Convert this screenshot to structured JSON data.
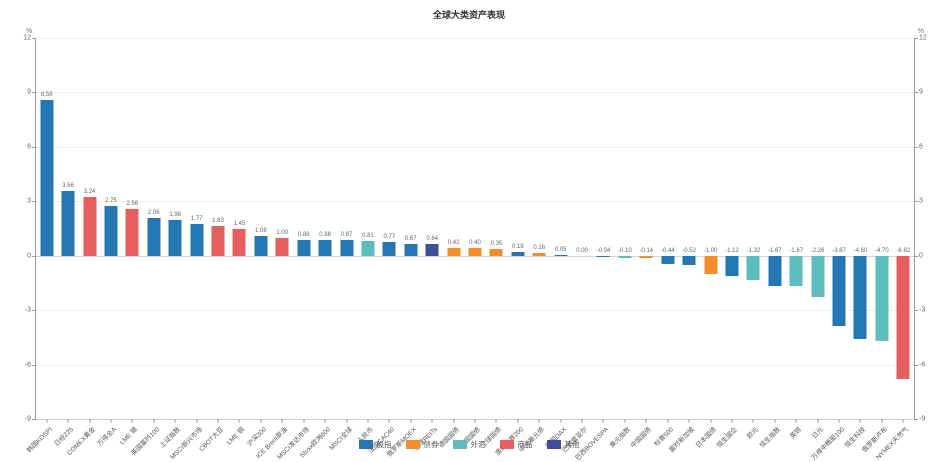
{
  "title": "全球大类资产表现",
  "axis": {
    "unit_left": "%",
    "unit_right": "%"
  },
  "legend": [
    {
      "label": "股指",
      "color": "#2477b2"
    },
    {
      "label": "债券",
      "color": "#f28e2b"
    },
    {
      "label": "外汇",
      "color": "#5dbcbd"
    },
    {
      "label": "商品",
      "color": "#e45f5e"
    },
    {
      "label": "其他",
      "color": "#3e4f95"
    }
  ],
  "chart_data": {
    "type": "bar",
    "title": "全球大类资产表现",
    "xlabel": "",
    "ylabel": "%",
    "ylim": [
      -9,
      12
    ],
    "yticks": [
      12,
      9,
      6,
      3,
      0,
      -3,
      -6,
      -9
    ],
    "grid": true,
    "legend_position": "bottom",
    "value_labels": true,
    "bars": [
      {
        "label": "韩国KOSPI",
        "value": 8.58,
        "group": "股指"
      },
      {
        "label": "日经225",
        "value": 3.56,
        "group": "股指"
      },
      {
        "label": "COMEX黄金",
        "value": 3.24,
        "group": "商品"
      },
      {
        "label": "万得全A",
        "value": 2.75,
        "group": "股指"
      },
      {
        "label": "LME 锡",
        "value": 2.56,
        "group": "商品"
      },
      {
        "label": "英国富时100",
        "value": 2.06,
        "group": "股指"
      },
      {
        "label": "上证指数",
        "value": 1.98,
        "group": "股指"
      },
      {
        "label": "MSCI新兴市场",
        "value": 1.77,
        "group": "股指"
      },
      {
        "label": "CBOT大豆",
        "value": 1.63,
        "group": "商品"
      },
      {
        "label": "LME 铜",
        "value": 1.45,
        "group": "商品"
      },
      {
        "label": "沪深300",
        "value": 1.08,
        "group": "股指"
      },
      {
        "label": "ICE Brent原油",
        "value": 1.0,
        "group": "商品"
      },
      {
        "label": "MSCI发达市场",
        "value": 0.88,
        "group": "股指"
      },
      {
        "label": "Stoxx欧洲600",
        "value": 0.88,
        "group": "股指"
      },
      {
        "label": "MSCI全球",
        "value": 0.87,
        "group": "股指"
      },
      {
        "label": "人民币",
        "value": 0.81,
        "group": "外汇"
      },
      {
        "label": "法国CAC40",
        "value": 0.77,
        "group": "股指"
      },
      {
        "label": "俄罗斯MOEX",
        "value": 0.67,
        "group": "股指"
      },
      {
        "label": "全球REITs",
        "value": 0.64,
        "group": "其他"
      },
      {
        "label": "德国国债",
        "value": 0.42,
        "group": "债券"
      },
      {
        "label": "美国国债",
        "value": 0.4,
        "group": "债券"
      },
      {
        "label": "全球国债",
        "value": 0.35,
        "group": "债券"
      },
      {
        "label": "澳洲标普200",
        "value": 0.18,
        "group": "股指"
      },
      {
        "label": "中资美元债",
        "value": 0.16,
        "group": "债券"
      },
      {
        "label": "德国DAX",
        "value": 0.05,
        "group": "股指"
      },
      {
        "label": "巴西雷亚尔",
        "value": 0.0,
        "group": "外汇"
      },
      {
        "label": "巴西BOVESPA",
        "value": -0.04,
        "group": "股指"
      },
      {
        "label": "美元指数",
        "value": -0.1,
        "group": "外汇"
      },
      {
        "label": "中国国债",
        "value": -0.14,
        "group": "债券"
      },
      {
        "label": "标普500",
        "value": -0.44,
        "group": "股指"
      },
      {
        "label": "富时新加坡",
        "value": -0.52,
        "group": "股指"
      },
      {
        "label": "日本国债",
        "value": -1.0,
        "group": "债券"
      },
      {
        "label": "恒生国企",
        "value": -1.12,
        "group": "股指"
      },
      {
        "label": "欧元",
        "value": -1.32,
        "group": "外汇"
      },
      {
        "label": "恒生指数",
        "value": -1.67,
        "group": "股指"
      },
      {
        "label": "英镑",
        "value": -1.67,
        "group": "外汇"
      },
      {
        "label": "日元",
        "value": -2.26,
        "group": "外汇"
      },
      {
        "label": "万得中概股100",
        "value": -3.87,
        "group": "股指"
      },
      {
        "label": "恒生科技",
        "value": -4.6,
        "group": "股指"
      },
      {
        "label": "俄罗斯卢布",
        "value": -4.7,
        "group": "外汇"
      },
      {
        "label": "NYMEX天然气",
        "value": -6.82,
        "group": "商品"
      }
    ]
  }
}
